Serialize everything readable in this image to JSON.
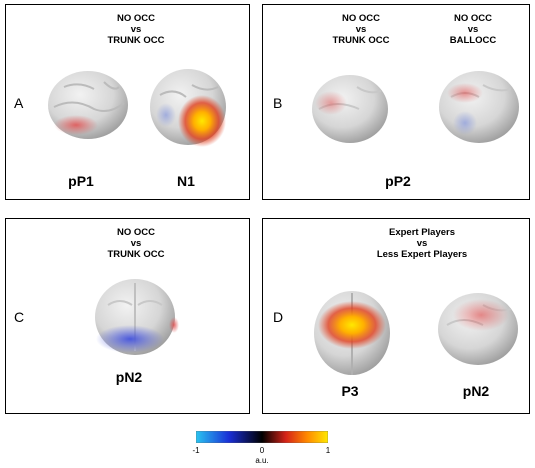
{
  "panels": {
    "A": {
      "letter": "A",
      "heading": "NO OCC\nvs\nTRUNK OCC",
      "captions": [
        "pP1",
        "N1"
      ]
    },
    "B": {
      "letter": "B",
      "headings": [
        "NO OCC\nvs\nTRUNK OCC",
        "NO OCC\nvs\nBALLOCC"
      ],
      "caption": "pP2"
    },
    "C": {
      "letter": "C",
      "heading": "NO OCC\nvs\nTRUNK OCC",
      "caption": "pN2"
    },
    "D": {
      "letter": "D",
      "heading": "Expert Players\nvs\nLess Expert Players",
      "captions": [
        "P3",
        "pN2"
      ]
    }
  },
  "colorbar": {
    "ticks": [
      "-1",
      "0",
      "1"
    ],
    "unit": "a.u.",
    "colors": [
      "#29c4f0",
      "#1a2fd6",
      "#000000",
      "#d42318",
      "#ff8800",
      "#ffe800"
    ]
  }
}
